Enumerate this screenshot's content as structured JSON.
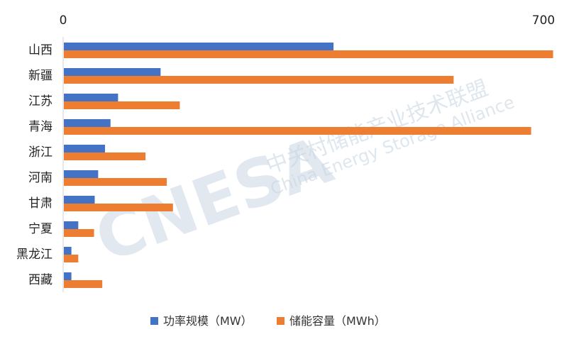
{
  "chart_data": {
    "type": "bar",
    "orientation": "horizontal",
    "categories": [
      "山西",
      "新疆",
      "江苏",
      "青海",
      "浙江",
      "河南",
      "甘肃",
      "宁夏",
      "黑龙江",
      "西藏"
    ],
    "series": [
      {
        "name": "功率规模（MW）",
        "color": "#4472C4",
        "values": [
          393,
          141,
          79,
          68,
          60,
          50,
          45,
          21,
          11,
          11
        ]
      },
      {
        "name": "储能容量（MWh）",
        "color": "#ED7D31",
        "values": [
          713,
          568,
          169,
          681,
          119,
          150,
          159,
          44,
          21,
          56
        ]
      }
    ],
    "xlim": [
      0,
      700
    ],
    "x_ticks": [
      "0",
      "700"
    ],
    "x_axis_position": "top",
    "grid": false,
    "legend": "bottom"
  },
  "watermark": {
    "logo": "CNESA",
    "cn": "中关村储能产业技术联盟",
    "en": "China Energy Storage Alliance"
  }
}
